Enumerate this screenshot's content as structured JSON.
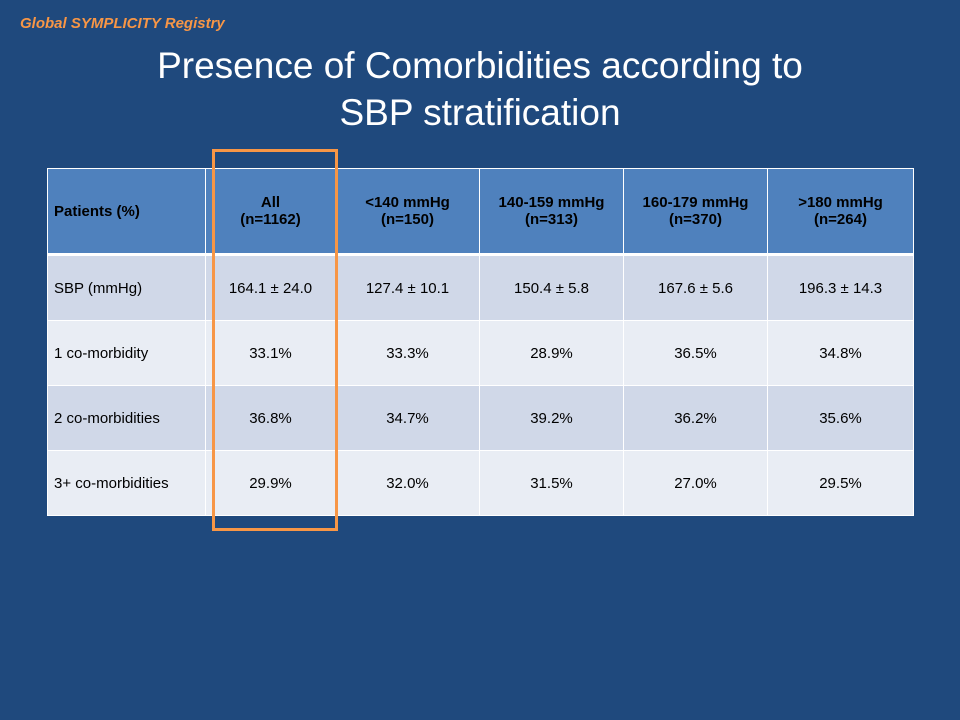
{
  "header": {
    "registry_label": "Global SYMPLICITY Registry"
  },
  "title": {
    "line1": "Presence of Comorbidities according to",
    "line2": "SBP stratification"
  },
  "colors": {
    "background": "#1f497d",
    "accent": "#f79646",
    "header_row": "#4f81bd",
    "row_dark": "#d0d8e8",
    "row_light": "#e9edf4"
  },
  "table": {
    "corner_label": "Patients (%)",
    "columns": [
      {
        "label": "All",
        "n": "(n=1162)"
      },
      {
        "label": "<140 mmHg",
        "n": "(n=150)"
      },
      {
        "label": "140-159 mmHg",
        "n": "(n=313)"
      },
      {
        "label": "160-179 mmHg",
        "n": "(n=370)"
      },
      {
        "label": ">180 mmHg",
        "n": "(n=264)"
      }
    ],
    "rows": [
      {
        "label": "SBP (mmHg)",
        "cells": [
          "164.1 ± 24.0",
          "127.4 ± 10.1",
          "150.4 ± 5.8",
          "167.6 ± 5.6",
          "196.3 ± 14.3"
        ]
      },
      {
        "label": "1 co-morbidity",
        "cells": [
          "33.1%",
          "33.3%",
          "28.9%",
          "36.5%",
          "34.8%"
        ]
      },
      {
        "label": "2 co-morbidities",
        "cells": [
          "36.8%",
          "34.7%",
          "39.2%",
          "36.2%",
          "35.6%"
        ]
      },
      {
        "label": "3+ co-morbidities",
        "cells": [
          "29.9%",
          "32.0%",
          "31.5%",
          "27.0%",
          "29.5%"
        ]
      }
    ]
  }
}
